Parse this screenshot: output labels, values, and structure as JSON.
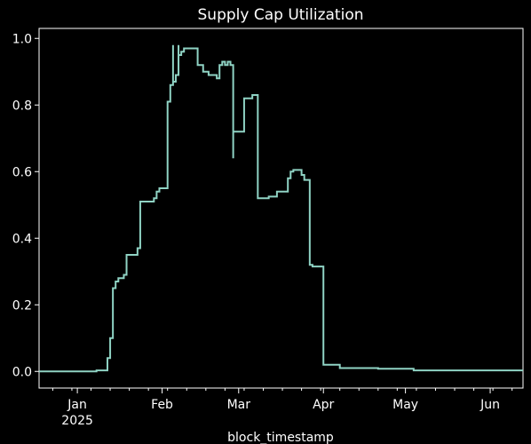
{
  "chart_data": {
    "type": "line",
    "title": "Supply Cap Utilization",
    "xlabel": "block_timestamp",
    "ylabel": "",
    "line_color": "#8fd3c4",
    "background": "#000000",
    "foreground": "#ffffff",
    "grid": false,
    "legend": "none",
    "xlim": [
      "2024-12-18",
      "2025-06-13"
    ],
    "ylim": [
      -0.05,
      1.03
    ],
    "yticks": [
      {
        "value": 0.0,
        "label": "0.0"
      },
      {
        "value": 0.2,
        "label": "0.2"
      },
      {
        "value": 0.4,
        "label": "0.4"
      },
      {
        "value": 0.6,
        "label": "0.6"
      },
      {
        "value": 0.8,
        "label": "0.8"
      },
      {
        "value": 1.0,
        "label": "1.0"
      }
    ],
    "xticks": [
      {
        "date": "2025-01-01",
        "label": "Jan",
        "sublabel": "2025"
      },
      {
        "date": "2025-02-01",
        "label": "Feb",
        "sublabel": ""
      },
      {
        "date": "2025-03-01",
        "label": "Mar",
        "sublabel": ""
      },
      {
        "date": "2025-04-01",
        "label": "Apr",
        "sublabel": ""
      },
      {
        "date": "2025-05-01",
        "label": "May",
        "sublabel": ""
      },
      {
        "date": "2025-06-01",
        "label": "Jun",
        "sublabel": ""
      }
    ],
    "series": [
      {
        "points": [
          [
            "2024-12-18",
            0.0
          ],
          [
            "2025-01-08",
            0.0
          ],
          [
            "2025-01-08",
            0.003
          ],
          [
            "2025-01-12",
            0.003
          ],
          [
            "2025-01-12",
            0.04
          ],
          [
            "2025-01-13",
            0.04
          ],
          [
            "2025-01-13",
            0.09
          ],
          [
            "2025-01-13",
            0.1
          ],
          [
            "2025-01-14",
            0.1
          ],
          [
            "2025-01-14",
            0.25
          ],
          [
            "2025-01-15",
            0.25
          ],
          [
            "2025-01-15",
            0.27
          ],
          [
            "2025-01-16",
            0.27
          ],
          [
            "2025-01-16",
            0.28
          ],
          [
            "2025-01-18",
            0.28
          ],
          [
            "2025-01-18",
            0.29
          ],
          [
            "2025-01-19",
            0.29
          ],
          [
            "2025-01-19",
            0.35
          ],
          [
            "2025-01-23",
            0.35
          ],
          [
            "2025-01-23",
            0.37
          ],
          [
            "2025-01-24",
            0.37
          ],
          [
            "2025-01-24",
            0.51
          ],
          [
            "2025-01-29",
            0.51
          ],
          [
            "2025-01-29",
            0.52
          ],
          [
            "2025-01-30",
            0.52
          ],
          [
            "2025-01-30",
            0.54
          ],
          [
            "2025-01-31",
            0.54
          ],
          [
            "2025-01-31",
            0.55
          ],
          [
            "2025-02-03",
            0.55
          ],
          [
            "2025-02-03",
            0.6
          ],
          [
            "2025-02-03",
            0.65
          ],
          [
            "2025-02-03",
            0.81
          ],
          [
            "2025-02-04",
            0.81
          ],
          [
            "2025-02-04",
            0.86
          ],
          [
            "2025-02-05",
            0.86
          ],
          [
            "2025-02-05",
            0.98
          ],
          [
            "2025-02-05",
            0.87
          ],
          [
            "2025-02-06",
            0.87
          ],
          [
            "2025-02-06",
            0.89
          ],
          [
            "2025-02-07",
            0.89
          ],
          [
            "2025-02-07",
            0.98
          ],
          [
            "2025-02-07",
            0.95
          ],
          [
            "2025-02-08",
            0.95
          ],
          [
            "2025-02-08",
            0.96
          ],
          [
            "2025-02-09",
            0.96
          ],
          [
            "2025-02-09",
            0.97
          ],
          [
            "2025-02-14",
            0.97
          ],
          [
            "2025-02-14",
            0.92
          ],
          [
            "2025-02-16",
            0.92
          ],
          [
            "2025-02-16",
            0.9
          ],
          [
            "2025-02-18",
            0.9
          ],
          [
            "2025-02-18",
            0.89
          ],
          [
            "2025-02-21",
            0.89
          ],
          [
            "2025-02-21",
            0.88
          ],
          [
            "2025-02-22",
            0.88
          ],
          [
            "2025-02-22",
            0.92
          ],
          [
            "2025-02-23",
            0.92
          ],
          [
            "2025-02-23",
            0.93
          ],
          [
            "2025-02-24",
            0.93
          ],
          [
            "2025-02-24",
            0.92
          ],
          [
            "2025-02-25",
            0.92
          ],
          [
            "2025-02-25",
            0.93
          ],
          [
            "2025-02-26",
            0.93
          ],
          [
            "2025-02-26",
            0.92
          ],
          [
            "2025-02-27",
            0.92
          ],
          [
            "2025-02-27",
            0.9
          ],
          [
            "2025-02-27",
            0.64
          ],
          [
            "2025-02-27",
            0.72
          ],
          [
            "2025-03-03",
            0.72
          ],
          [
            "2025-03-03",
            0.82
          ],
          [
            "2025-03-06",
            0.82
          ],
          [
            "2025-03-06",
            0.83
          ],
          [
            "2025-03-08",
            0.83
          ],
          [
            "2025-03-08",
            0.52
          ],
          [
            "2025-03-12",
            0.52
          ],
          [
            "2025-03-12",
            0.525
          ],
          [
            "2025-03-15",
            0.525
          ],
          [
            "2025-03-15",
            0.54
          ],
          [
            "2025-03-19",
            0.54
          ],
          [
            "2025-03-19",
            0.58
          ],
          [
            "2025-03-20",
            0.58
          ],
          [
            "2025-03-20",
            0.6
          ],
          [
            "2025-03-21",
            0.6
          ],
          [
            "2025-03-21",
            0.605
          ],
          [
            "2025-03-24",
            0.605
          ],
          [
            "2025-03-24",
            0.59
          ],
          [
            "2025-03-25",
            0.59
          ],
          [
            "2025-03-25",
            0.575
          ],
          [
            "2025-03-27",
            0.575
          ],
          [
            "2025-03-27",
            0.35
          ],
          [
            "2025-03-27",
            0.32
          ],
          [
            "2025-03-28",
            0.32
          ],
          [
            "2025-03-28",
            0.315
          ],
          [
            "2025-04-01",
            0.315
          ],
          [
            "2025-04-01",
            0.02
          ],
          [
            "2025-04-07",
            0.02
          ],
          [
            "2025-04-07",
            0.01
          ],
          [
            "2025-04-21",
            0.01
          ],
          [
            "2025-04-21",
            0.008
          ],
          [
            "2025-05-04",
            0.008
          ],
          [
            "2025-05-04",
            0.003
          ],
          [
            "2025-06-13",
            0.003
          ]
        ]
      }
    ]
  }
}
